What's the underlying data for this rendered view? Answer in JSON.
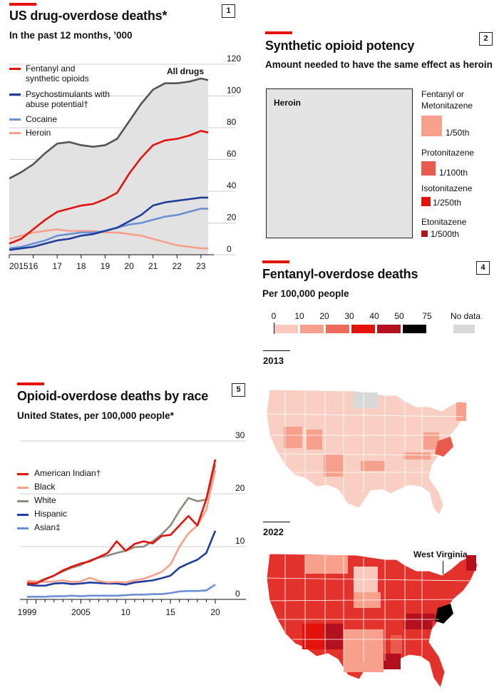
{
  "panel1": {
    "number": "1",
    "title": "US drug-overdose deaths*",
    "subtitle": "In the past 12 months, ’000",
    "annotation": "All drugs",
    "legend": [
      {
        "label": "Fentanyl and synthetic opioids",
        "color": "#e3120b"
      },
      {
        "label": "Psychostimulants with abuse potential†",
        "color": "#1f3e9c"
      },
      {
        "label": "Cocaine",
        "color": "#6d8fd3"
      },
      {
        "label": "Heroin",
        "color": "#f7a08c"
      }
    ],
    "chart_data": {
      "type": "area",
      "title": "US drug-overdose deaths*",
      "ylabel": "In the past 12 months, ’000",
      "ylim": [
        0,
        120
      ],
      "yticks": [
        "0",
        "20",
        "40",
        "60",
        "80",
        "100",
        "120"
      ],
      "xticks": [
        "2015",
        "16",
        "17",
        "18",
        "19",
        "20",
        "21",
        "22",
        "23"
      ],
      "x": [
        2015.0,
        2015.5,
        2016.0,
        2016.5,
        2017.0,
        2017.5,
        2018.0,
        2018.5,
        2019.0,
        2019.5,
        2020.0,
        2020.5,
        2021.0,
        2021.5,
        2022.0,
        2022.5,
        2023.0,
        2023.3
      ],
      "series": [
        {
          "name": "All drugs",
          "color": "#555555",
          "values": [
            48,
            52,
            57,
            64,
            70,
            71,
            69,
            68,
            69,
            73,
            84,
            95,
            104,
            108,
            108,
            109,
            111,
            110
          ]
        },
        {
          "name": "Fentanyl and synthetic opioids",
          "color": "#e3120b",
          "values": [
            7,
            10,
            16,
            22,
            27,
            29,
            31,
            32,
            35,
            39,
            51,
            61,
            69,
            72,
            73,
            75,
            78,
            77
          ]
        },
        {
          "name": "Psychostimulants with abuse potential†",
          "color": "#1f3e9c",
          "values": [
            3,
            4,
            5,
            7,
            9,
            10,
            12,
            13,
            15,
            17,
            21,
            25,
            31,
            33,
            34,
            35,
            36,
            36
          ]
        },
        {
          "name": "Cocaine",
          "color": "#6d8fd3",
          "values": [
            4,
            5,
            7,
            9,
            12,
            13,
            14,
            14,
            15,
            17,
            19,
            20,
            22,
            24,
            25,
            27,
            29,
            29
          ]
        },
        {
          "name": "Heroin",
          "color": "#f7a08c",
          "values": [
            10,
            12,
            14,
            15,
            16,
            15,
            15,
            15,
            14,
            14,
            13,
            12,
            10,
            8,
            6,
            5,
            4,
            4
          ]
        }
      ]
    }
  },
  "panel2": {
    "number": "2",
    "title": "Synthetic opioid potency",
    "subtitle": "Amount needed to have the same effect as heroin",
    "heroin_label": "Heroin",
    "items": [
      {
        "name_line1": "Fentanyl or",
        "name_line2": "Metonitazene",
        "ratio": "1/50th",
        "fraction": 0.02,
        "color": "#f7a08c"
      },
      {
        "name_line1": "Protonitazene",
        "name_line2": "",
        "ratio": "1/100th",
        "fraction": 0.01,
        "color": "#e85a4c"
      },
      {
        "name_line1": "Isotonitazene",
        "name_line2": "",
        "ratio": "1/250th",
        "fraction": 0.004,
        "color": "#e3120b"
      },
      {
        "name_line1": "Etonitazene",
        "name_line2": "",
        "ratio": "1/500th",
        "fraction": 0.002,
        "color": "#b5101e"
      }
    ]
  },
  "panel4": {
    "number": "4",
    "title": "Fentanyl-overdose deaths",
    "subtitle": "Per 100,000 people",
    "scale_labels": [
      "0",
      "10",
      "20",
      "30",
      "40",
      "50",
      "75"
    ],
    "scale_colors": [
      "#f9c9bd",
      "#f7a08c",
      "#ef6a5a",
      "#e3120b",
      "#b5101e",
      "#000000"
    ],
    "no_data_label": "No data",
    "no_data_color": "#d9d9d9",
    "year_a": "2013",
    "year_b": "2022",
    "callout": "West Virginia",
    "map_2013_fill": "#f9cfc4",
    "map_2022_fill": "#e3322b"
  },
  "panel5": {
    "number": "5",
    "title": "Opioid-overdose deaths by race",
    "subtitle": "United States, per 100,000 people*",
    "legend": [
      {
        "label": "American Indian†",
        "color": "#e3120b"
      },
      {
        "label": "Black",
        "color": "#f7a08c"
      },
      {
        "label": "White",
        "color": "#8c8c7e"
      },
      {
        "label": "Hispanic",
        "color": "#1f3e9c"
      },
      {
        "label": "Asian‡",
        "color": "#6d8fd3"
      }
    ],
    "chart_data": {
      "type": "line",
      "title": "Opioid-overdose deaths by race",
      "ylabel": "United States, per 100,000 people*",
      "ylim": [
        0,
        30
      ],
      "yticks": [
        "0",
        "10",
        "20",
        "30"
      ],
      "xticks": [
        "1999",
        "2005",
        "10",
        "15",
        "20"
      ],
      "x": [
        1999,
        2000,
        2001,
        2002,
        2003,
        2004,
        2005,
        2006,
        2007,
        2008,
        2009,
        2010,
        2011,
        2012,
        2013,
        2014,
        2015,
        2016,
        2017,
        2018,
        2019,
        2020
      ],
      "series": [
        {
          "name": "American Indian†",
          "color": "#e3120b",
          "values": [
            3.0,
            3.0,
            3.8,
            4.5,
            5.5,
            6.2,
            6.8,
            7.2,
            8.0,
            8.8,
            11.0,
            9.2,
            10.5,
            11.0,
            10.6,
            12.0,
            12.2,
            14.0,
            15.8,
            14.0,
            19.0,
            26.5
          ]
        },
        {
          "name": "Black",
          "color": "#f7a08c",
          "values": [
            3.5,
            3.4,
            3.3,
            3.4,
            3.6,
            3.3,
            3.4,
            4.1,
            3.5,
            3.2,
            3.3,
            3.2,
            3.6,
            3.9,
            4.5,
            5.2,
            6.6,
            10.0,
            12.5,
            14.0,
            17.0,
            24.5
          ]
        },
        {
          "name": "White",
          "color": "#8c8c7e",
          "values": [
            3.1,
            3.2,
            3.9,
            4.5,
            5.3,
            6.0,
            6.5,
            7.4,
            7.9,
            8.3,
            8.8,
            9.2,
            9.9,
            10.0,
            11.0,
            12.3,
            14.0,
            16.8,
            19.2,
            18.6,
            18.9,
            25.5
          ]
        },
        {
          "name": "Hispanic",
          "color": "#1f3e9c",
          "values": [
            2.8,
            2.6,
            2.6,
            3.0,
            3.1,
            2.9,
            3.0,
            3.2,
            3.1,
            3.0,
            3.0,
            2.8,
            3.2,
            3.4,
            3.6,
            4.0,
            4.5,
            6.0,
            6.8,
            7.5,
            8.8,
            13.0
          ]
        },
        {
          "name": "Asian‡",
          "color": "#6d8fd3",
          "values": [
            0.5,
            0.5,
            0.5,
            0.6,
            0.6,
            0.7,
            0.6,
            0.7,
            0.7,
            0.7,
            0.7,
            0.8,
            0.9,
            0.9,
            1.0,
            1.0,
            1.2,
            1.5,
            1.6,
            1.6,
            1.7,
            2.8
          ]
        }
      ]
    }
  }
}
